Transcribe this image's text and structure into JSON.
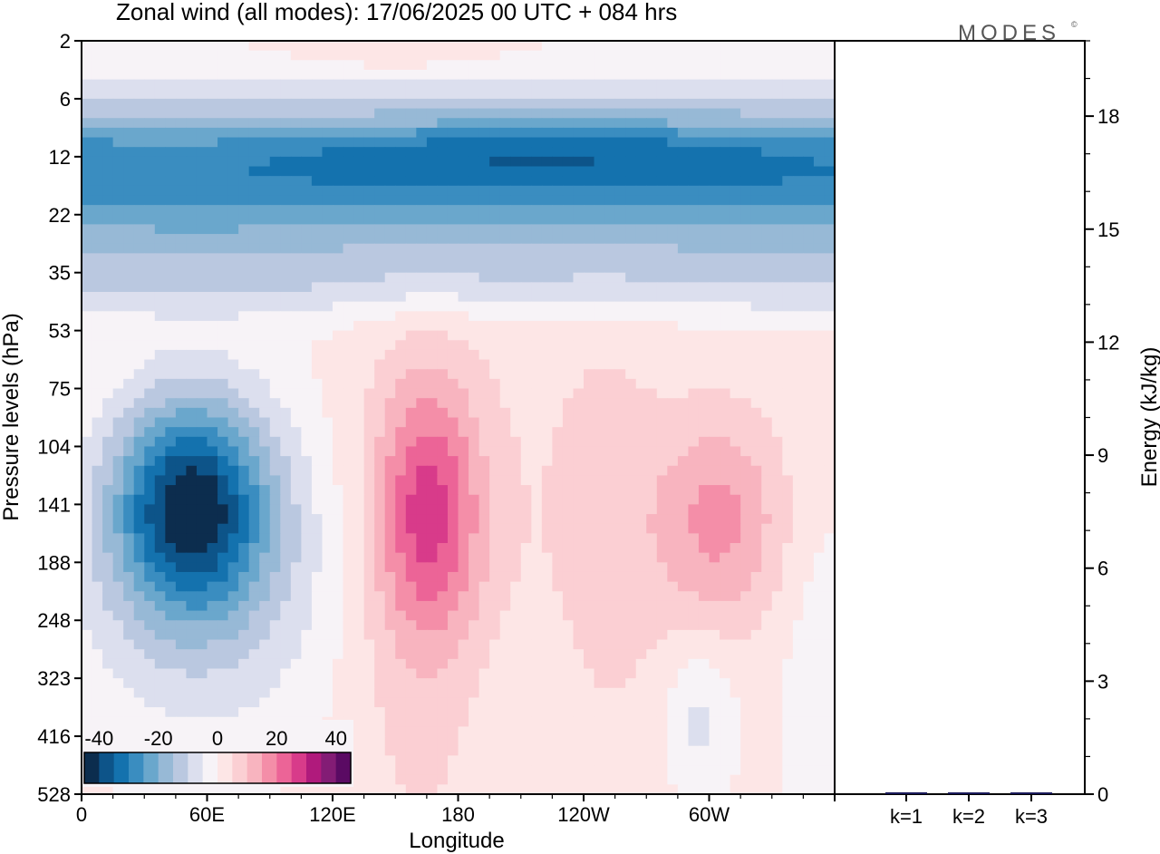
{
  "title": "Zonal wind (all modes):  17/06/2025  00 UTC  + 084 hrs",
  "logo": "MODES",
  "logo_mark": "©",
  "chart_data": [
    {
      "type": "heatmap",
      "xlabel": "Longitude",
      "ylabel": "Pressure levels (hPa)",
      "x_ticks": [
        "0",
        "60E",
        "120E",
        "180",
        "120W",
        "60W"
      ],
      "x_tick_values": [
        0,
        60,
        120,
        180,
        240,
        300
      ],
      "xlim": [
        0,
        360
      ],
      "y_ticks": [
        "2",
        "6",
        "12",
        "22",
        "35",
        "53",
        "75",
        "104",
        "141",
        "188",
        "248",
        "323",
        "416",
        "528"
      ],
      "y_scale": "pressure levels (top 2 hPa, bottom 528 hPa)",
      "colorbar": {
        "labels": [
          "-40",
          "-20",
          "0",
          "20",
          "40"
        ],
        "label_values": [
          -40,
          -20,
          0,
          20,
          40
        ],
        "range": [
          -45,
          45
        ],
        "step": 5,
        "colors": [
          "#0c2d4e",
          "#0d5489",
          "#1472ae",
          "#3a8dc0",
          "#6aa7cc",
          "#97b9d6",
          "#bac8e0",
          "#dcdfee",
          "#f7f3f7",
          "#fde6e6",
          "#fbcfd3",
          "#f8b4bf",
          "#f48ea8",
          "#ec6497",
          "#d83b8a",
          "#b01a7c",
          "#831c75",
          "#5a0a63"
        ]
      },
      "field_features": [
        {
          "name": "upper easterly band",
          "lon_range": [
            0,
            360
          ],
          "level_range": [
            "6",
            "35"
          ],
          "value": -30,
          "core_value": -40
        },
        {
          "name": "easterly core 60E",
          "lon": 50,
          "level": "141",
          "value": -35
        },
        {
          "name": "westerly core 180",
          "lon": 165,
          "level": "141",
          "value": 20
        },
        {
          "name": "westerly core 60W",
          "lon": 305,
          "level": "141",
          "value": 15
        }
      ]
    },
    {
      "type": "bar",
      "categories": [
        "k=1",
        "k=2",
        "k=3"
      ],
      "values": [
        0.05,
        0.04,
        0.02
      ],
      "ylabel": "Energy (kJ/kg)",
      "ylim": [
        0,
        20
      ],
      "y_ticks": [
        "0",
        "3",
        "6",
        "9",
        "12",
        "15",
        "18"
      ],
      "y_tick_values": [
        0,
        3,
        6,
        9,
        12,
        15,
        18
      ],
      "bar_color": "#1a1a5a"
    }
  ]
}
